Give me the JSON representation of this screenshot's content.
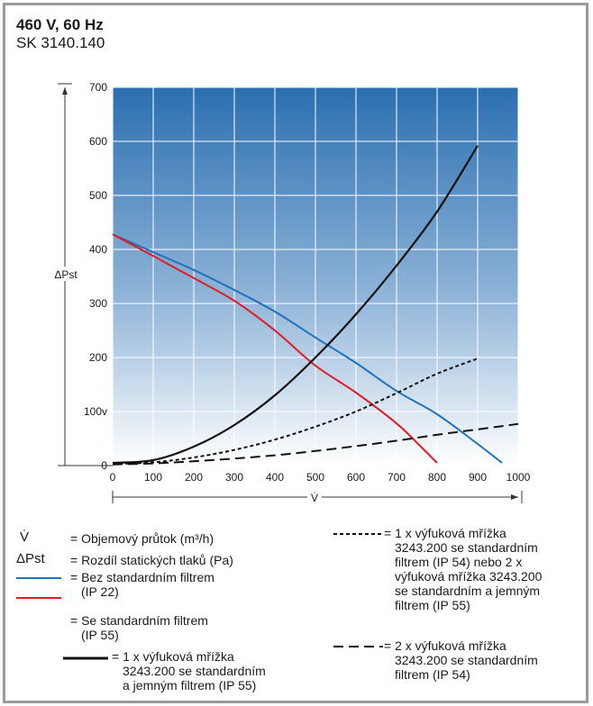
{
  "header": {
    "title": "460 V, 60 Hz",
    "subtitle": "SK 3140.140"
  },
  "chart_data": {
    "type": "line",
    "ylabel": "ΔPst",
    "xlabel": "V̇",
    "xlim": [
      0,
      1000
    ],
    "ylim": [
      0,
      700
    ],
    "x_ticks": [
      "0",
      "100",
      "200",
      "300",
      "400",
      "500",
      "600",
      "700",
      "800",
      "900",
      "1000"
    ],
    "y_ticks": [
      "0",
      "100v",
      "200",
      "300",
      "400",
      "500",
      "600",
      "700"
    ],
    "grid": true,
    "series": [
      {
        "color": "#1e73be",
        "style": "solid",
        "points": [
          [
            0,
            428
          ],
          [
            100,
            395
          ],
          [
            200,
            362
          ],
          [
            300,
            325
          ],
          [
            400,
            285
          ],
          [
            500,
            237
          ],
          [
            600,
            190
          ],
          [
            700,
            138
          ],
          [
            800,
            95
          ],
          [
            900,
            40
          ],
          [
            960,
            5
          ]
        ]
      },
      {
        "color": "#e31b23",
        "style": "solid",
        "points": [
          [
            0,
            428
          ],
          [
            100,
            388
          ],
          [
            200,
            347
          ],
          [
            300,
            305
          ],
          [
            400,
            250
          ],
          [
            500,
            185
          ],
          [
            600,
            135
          ],
          [
            700,
            78
          ],
          [
            760,
            35
          ],
          [
            800,
            5
          ]
        ]
      },
      {
        "color": "#111111",
        "style": "solid",
        "points": [
          [
            0,
            5
          ],
          [
            100,
            10
          ],
          [
            200,
            35
          ],
          [
            300,
            75
          ],
          [
            400,
            130
          ],
          [
            500,
            200
          ],
          [
            600,
            280
          ],
          [
            700,
            370
          ],
          [
            800,
            470
          ],
          [
            900,
            592
          ]
        ]
      },
      {
        "color": "#111111",
        "style": "dotted",
        "points": [
          [
            0,
            3
          ],
          [
            100,
            6
          ],
          [
            200,
            15
          ],
          [
            300,
            29
          ],
          [
            400,
            48
          ],
          [
            500,
            72
          ],
          [
            600,
            100
          ],
          [
            700,
            134
          ],
          [
            800,
            170
          ],
          [
            900,
            198
          ]
        ]
      },
      {
        "color": "#111111",
        "style": "dashed",
        "points": [
          [
            0,
            2
          ],
          [
            100,
            4
          ],
          [
            200,
            8
          ],
          [
            300,
            13
          ],
          [
            400,
            19
          ],
          [
            500,
            27
          ],
          [
            600,
            36
          ],
          [
            700,
            46
          ],
          [
            800,
            57
          ],
          [
            900,
            67
          ],
          [
            1000,
            77
          ]
        ]
      }
    ]
  },
  "legend": {
    "v_symbol": "V̇",
    "v_text": "= Objemový průtok (m³/h)",
    "dp_symbol": "ΔPst",
    "dp_text": "= Rozdíl statických tlaků (Pa)",
    "blue_text_1": "= Bez standardním filtrem",
    "blue_text_2": "(IP 22)",
    "red_text_1": "= Se standardním filtrem",
    "red_text_2": "(IP 55)",
    "black_text_1": "= 1 x výfuková mřížka",
    "black_text_2": "3243.200 se standardním",
    "black_text_3": "a jemným filtrem (IP 55)",
    "dotted_text_1": "= 1 x výfuková mřížka",
    "dotted_text_2": "3243.200 se standardním",
    "dotted_text_3": "filtrem (IP 54) nebo 2 x",
    "dotted_text_4": "výfuková mřížka 3243.200",
    "dotted_text_5": "se standardním a jemným",
    "dotted_text_6": "filtrem (IP 55)",
    "dashed_text_1": "= 2 x výfuková mřížka",
    "dashed_text_2": "3243.200 se standardním",
    "dashed_text_3": "filtrem (IP 54)",
    "colors": {
      "blue": "#1e73be",
      "red": "#e31b23",
      "black": "#111111",
      "bg_top": "#2a6fb0",
      "bg_bottom": "#ffffff"
    }
  }
}
